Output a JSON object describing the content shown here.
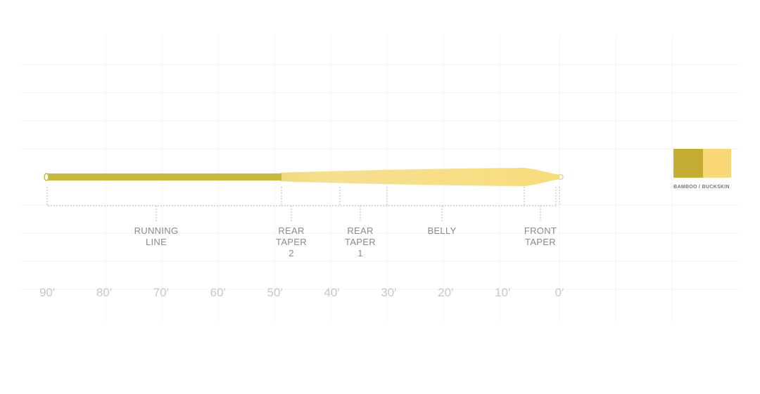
{
  "segments": [
    {
      "lines": [
        "RUNNING",
        "LINE"
      ]
    },
    {
      "lines": [
        "REAR",
        "TAPER",
        "2"
      ]
    },
    {
      "lines": [
        "REAR",
        "TAPER",
        "1"
      ]
    },
    {
      "lines": [
        "BELLY"
      ]
    },
    {
      "lines": [
        "FRONT",
        "TAPER"
      ]
    }
  ],
  "axis_labels": [
    "90′",
    "80′",
    "70′",
    "60′",
    "50′",
    "40′",
    "30′",
    "20′",
    "10′",
    "0′"
  ],
  "legend": {
    "label": "BAMBOO / BUCKSKIN"
  }
}
